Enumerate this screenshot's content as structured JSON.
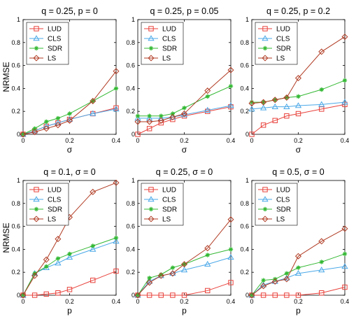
{
  "chart_data": [
    {
      "type": "line",
      "title": "q = 0.25, p = 0",
      "xlabel": "σ",
      "ylabel": "NRMSE",
      "xlim": [
        0,
        0.4
      ],
      "ylim": [
        0,
        1
      ],
      "xticks": [
        "0",
        "0.2",
        "0.4"
      ],
      "yticks": [
        "0",
        "0.2",
        "0.4",
        "0.6",
        "0.8",
        "1"
      ],
      "legend_position": "top-left",
      "x": [
        0,
        0.05,
        0.1,
        0.15,
        0.2,
        0.3,
        0.4
      ],
      "series": [
        {
          "name": "LUD",
          "values": [
            0,
            0.03,
            0.07,
            0.1,
            0.13,
            0.18,
            0.23
          ]
        },
        {
          "name": "CLS",
          "values": [
            0,
            0.03,
            0.07,
            0.1,
            0.13,
            0.18,
            0.22
          ]
        },
        {
          "name": "SDR",
          "values": [
            0,
            0.05,
            0.11,
            0.14,
            0.18,
            0.29,
            0.4
          ]
        },
        {
          "name": "LS",
          "values": [
            0,
            0.02,
            0.05,
            0.08,
            0.12,
            0.29,
            0.55
          ]
        }
      ]
    },
    {
      "type": "line",
      "title": "q = 0.25, p = 0.05",
      "xlabel": "σ",
      "ylabel": "",
      "xlim": [
        0,
        0.4
      ],
      "ylim": [
        0,
        1
      ],
      "xticks": [
        "0",
        "0.2",
        "0.4"
      ],
      "yticks": [
        "0",
        "0.2",
        "0.4",
        "0.6",
        "0.8",
        "1"
      ],
      "legend_position": "top-left",
      "x": [
        0,
        0.05,
        0.1,
        0.15,
        0.2,
        0.3,
        0.4
      ],
      "series": [
        {
          "name": "LUD",
          "values": [
            0,
            0.05,
            0.1,
            0.13,
            0.16,
            0.2,
            0.24
          ]
        },
        {
          "name": "CLS",
          "values": [
            0.14,
            0.14,
            0.14,
            0.15,
            0.17,
            0.21,
            0.25
          ]
        },
        {
          "name": "SDR",
          "values": [
            0.16,
            0.16,
            0.16,
            0.18,
            0.23,
            0.33,
            0.42
          ]
        },
        {
          "name": "LS",
          "values": [
            0.11,
            0.11,
            0.12,
            0.15,
            0.18,
            0.38,
            0.56
          ]
        }
      ]
    },
    {
      "type": "line",
      "title": "q = 0.25, p = 0.2",
      "xlabel": "σ",
      "ylabel": "",
      "xlim": [
        0,
        0.4
      ],
      "ylim": [
        0,
        1
      ],
      "xticks": [
        "0",
        "0.2",
        "0.4"
      ],
      "yticks": [
        "0",
        "0.2",
        "0.4",
        "0.6",
        "0.8",
        "1"
      ],
      "legend_position": "top-left",
      "x": [
        0,
        0.05,
        0.1,
        0.15,
        0.2,
        0.3,
        0.4
      ],
      "series": [
        {
          "name": "LUD",
          "values": [
            0,
            0.08,
            0.12,
            0.16,
            0.18,
            0.22,
            0.26
          ]
        },
        {
          "name": "CLS",
          "values": [
            0.22,
            0.23,
            0.24,
            0.24,
            0.25,
            0.26,
            0.28
          ]
        },
        {
          "name": "SDR",
          "values": [
            0.28,
            0.28,
            0.3,
            0.32,
            0.33,
            0.39,
            0.47
          ]
        },
        {
          "name": "LS",
          "values": [
            0.27,
            0.28,
            0.3,
            0.32,
            0.49,
            0.72,
            0.85
          ]
        }
      ]
    },
    {
      "type": "line",
      "title": "q = 0.1, σ = 0",
      "xlabel": "p",
      "ylabel": "NRMSE",
      "xlim": [
        0,
        0.4
      ],
      "ylim": [
        0,
        1
      ],
      "xticks": [
        "0",
        "0.2",
        "0.4"
      ],
      "yticks": [
        "0",
        "0.2",
        "0.4",
        "0.6",
        "0.8",
        "1"
      ],
      "legend_position": "top-left",
      "x": [
        0,
        0.05,
        0.1,
        0.15,
        0.2,
        0.3,
        0.4
      ],
      "series": [
        {
          "name": "LUD",
          "values": [
            0,
            0,
            0.01,
            0.02,
            0.05,
            0.13,
            0.21
          ]
        },
        {
          "name": "CLS",
          "values": [
            0,
            0.19,
            0.24,
            0.28,
            0.33,
            0.4,
            0.47
          ]
        },
        {
          "name": "SDR",
          "values": [
            0,
            0.19,
            0.25,
            0.32,
            0.36,
            0.43,
            0.5
          ]
        },
        {
          "name": "LS",
          "values": [
            0,
            0.17,
            0.31,
            0.49,
            0.68,
            0.9,
            0.98
          ]
        }
      ]
    },
    {
      "type": "line",
      "title": "q = 0.25, σ = 0",
      "xlabel": "p",
      "ylabel": "",
      "xlim": [
        0,
        0.4
      ],
      "ylim": [
        0,
        1
      ],
      "xticks": [
        "0",
        "0.2",
        "0.4"
      ],
      "yticks": [
        "0",
        "0.2",
        "0.4",
        "0.6",
        "0.8",
        "1"
      ],
      "legend_position": "top-left",
      "x": [
        0,
        0.05,
        0.1,
        0.15,
        0.2,
        0.3,
        0.4
      ],
      "series": [
        {
          "name": "LUD",
          "values": [
            0,
            0,
            0,
            0,
            0,
            0.04,
            0.11
          ]
        },
        {
          "name": "CLS",
          "values": [
            0,
            0.12,
            0.17,
            0.19,
            0.22,
            0.27,
            0.33
          ]
        },
        {
          "name": "SDR",
          "values": [
            0,
            0.15,
            0.18,
            0.24,
            0.27,
            0.35,
            0.4
          ]
        },
        {
          "name": "LS",
          "values": [
            0,
            0.11,
            0.17,
            0.19,
            0.27,
            0.41,
            0.66
          ]
        }
      ]
    },
    {
      "type": "line",
      "title": "q = 0.5, σ = 0",
      "xlabel": "p",
      "ylabel": "",
      "xlim": [
        0,
        0.4
      ],
      "ylim": [
        0,
        1
      ],
      "xticks": [
        "0",
        "0.2",
        "0.4"
      ],
      "yticks": [
        "0",
        "0.2",
        "0.4",
        "0.6",
        "0.8",
        "1"
      ],
      "legend_position": "top-left",
      "x": [
        0,
        0.05,
        0.1,
        0.15,
        0.2,
        0.3,
        0.4
      ],
      "series": [
        {
          "name": "LUD",
          "values": [
            0,
            0,
            0,
            0,
            0,
            0.02,
            0.07
          ]
        },
        {
          "name": "CLS",
          "values": [
            0,
            0.09,
            0.12,
            0.15,
            0.19,
            0.22,
            0.25
          ]
        },
        {
          "name": "SDR",
          "values": [
            0,
            0.13,
            0.14,
            0.19,
            0.24,
            0.29,
            0.36
          ]
        },
        {
          "name": "LS",
          "values": [
            0,
            0.08,
            0.12,
            0.14,
            0.34,
            0.47,
            0.58
          ]
        }
      ]
    }
  ],
  "series_styles": [
    {
      "name": "LUD",
      "color": "#e8413b",
      "marker": "square"
    },
    {
      "name": "CLS",
      "color": "#4aa8e8",
      "marker": "triangle"
    },
    {
      "name": "SDR",
      "color": "#33b833",
      "marker": "star"
    },
    {
      "name": "LS",
      "color": "#b03a22",
      "marker": "diamond"
    }
  ]
}
